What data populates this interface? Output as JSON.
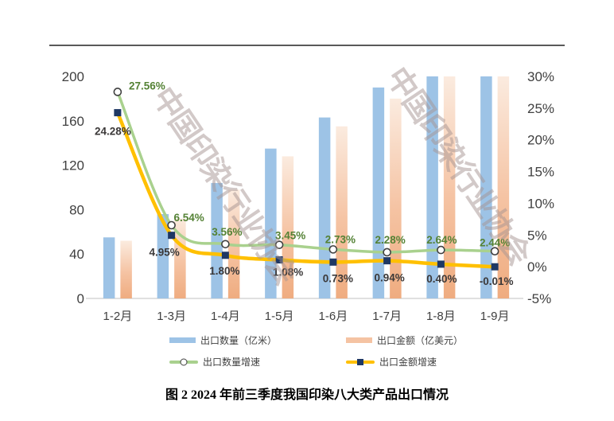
{
  "watermark": {
    "text": "中国印染行业协会"
  },
  "chart_data": {
    "type": "combo-bar-line",
    "title": "图 2 2024 年前三季度我国印染八大类产品出口情况",
    "categories": [
      "1-2月",
      "1-3月",
      "1-4月",
      "1-5月",
      "1-6月",
      "1-7月",
      "1-8月",
      "1-9月"
    ],
    "left_axis": {
      "min": 0,
      "max": 200,
      "ticks": [
        0,
        40,
        80,
        120,
        160,
        200
      ]
    },
    "right_axis": {
      "min": -5,
      "max": 30,
      "ticks": [
        -5,
        0,
        5,
        10,
        15,
        20,
        25,
        30
      ],
      "format": "percent"
    },
    "grid": "off",
    "legend_position": "bottom",
    "series": [
      {
        "name": "出口数量（亿米）",
        "type": "bar",
        "axis": "left",
        "color": "#9DC3E6",
        "values": [
          55,
          76,
          104,
          135,
          163,
          190,
          200,
          200
        ]
      },
      {
        "name": "出口金额（亿美元）",
        "type": "bar",
        "axis": "left",
        "color": "#F5C3A3",
        "gradient_top": "#FBEBDF",
        "gradient_bottom": "#EFAC80",
        "values": [
          52,
          72,
          98,
          128,
          155,
          180,
          200,
          200
        ]
      },
      {
        "name": "出口数量增速",
        "type": "line",
        "axis": "right",
        "color": "#A9D18E",
        "marker": "circle",
        "marker_color": "#FFFFFF",
        "marker_stroke": "#404040",
        "label_color": "#548235",
        "values": [
          27.56,
          6.54,
          3.56,
          3.45,
          2.73,
          2.28,
          2.64,
          2.44
        ]
      },
      {
        "name": "出口金额增速",
        "type": "line",
        "axis": "right",
        "color": "#FFC000",
        "marker": "square",
        "marker_color": "#1F3864",
        "label_color": "#3B3838",
        "values": [
          24.28,
          4.95,
          1.8,
          1.08,
          0.73,
          0.94,
          0.4,
          -0.01
        ]
      }
    ]
  }
}
